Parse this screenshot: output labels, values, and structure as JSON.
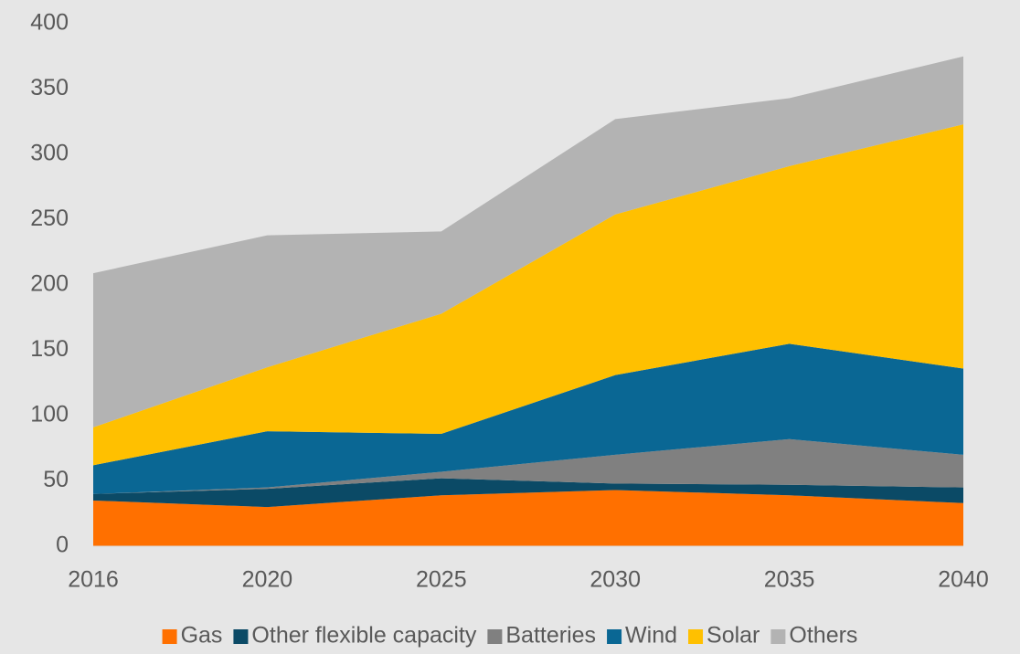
{
  "chart_data": {
    "type": "stacked_area",
    "categories": [
      "2016",
      "2020",
      "2025",
      "2030",
      "2035",
      "2040"
    ],
    "ylim": [
      0,
      400
    ],
    "yticks": [
      0,
      50,
      100,
      150,
      200,
      250,
      300,
      350,
      400
    ],
    "legend": "bottom",
    "series": [
      {
        "name": "Gas",
        "color": "#ff7000",
        "values": [
          35,
          30,
          39,
          43,
          39,
          33
        ]
      },
      {
        "name": "Other flexible capacity",
        "color": "#0b4a66",
        "values": [
          5,
          14,
          13,
          5,
          8,
          12
        ]
      },
      {
        "name": "Batteries",
        "color": "#808080",
        "values": [
          0,
          1,
          5,
          22,
          35,
          25
        ]
      },
      {
        "name": "Wind",
        "color": "#0a6794",
        "values": [
          22,
          43,
          29,
          61,
          73,
          66
        ]
      },
      {
        "name": "Solar",
        "color": "#ffc000",
        "values": [
          29,
          49,
          92,
          123,
          136,
          187
        ]
      },
      {
        "name": "Others",
        "color": "#b3b3b3",
        "values": [
          118,
          101,
          63,
          73,
          52,
          52
        ]
      }
    ]
  }
}
